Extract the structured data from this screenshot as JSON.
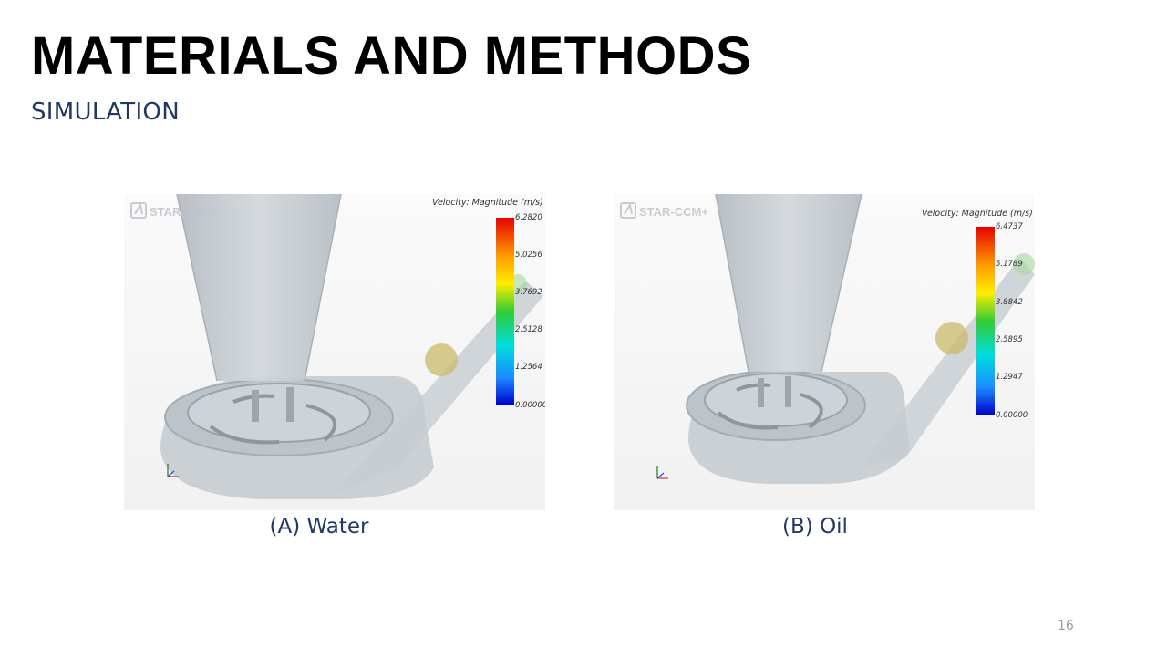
{
  "slide": {
    "title": "MATERIALS AND METHODS",
    "subtitle": "SIMULATION",
    "page_number": "16"
  },
  "panels": [
    {
      "caption": "(A) Water",
      "logo": "STAR-CCM+",
      "colorbar_title": "Velocity: Magnitude (m/s)",
      "colorbar_ticks": [
        "6.2820",
        "5.0256",
        "3.7692",
        "2.5128",
        "1.2564",
        "0.00000"
      ]
    },
    {
      "caption": "(B) Oil",
      "logo": "STAR-CCM+",
      "colorbar_title": "Velocity: Magnitude (m/s)",
      "colorbar_ticks": [
        "6.4737",
        "5.1789",
        "3.8842",
        "2.5895",
        "1.2947",
        "0.00000"
      ]
    }
  ],
  "colors": {
    "title": "#000000",
    "subtitle": "#1f3864",
    "geometry": "#b9c0c6",
    "particle": "#c9b96a"
  },
  "icons": [
    "star-ccm-logo-icon",
    "axis-triad-icon"
  ]
}
